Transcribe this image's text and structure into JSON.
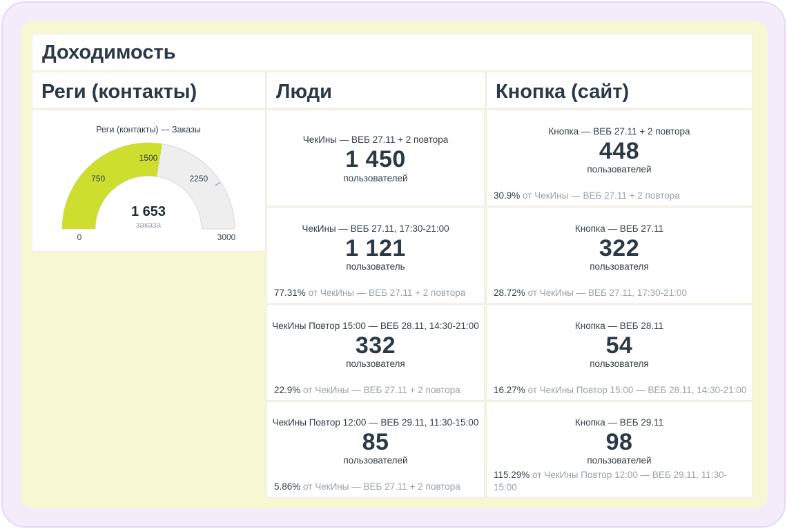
{
  "dashboard": {
    "title": "Доходимость"
  },
  "columns": {
    "regi": "Реги (контакты)",
    "people": "Люди",
    "button": "Кнопка (сайт)"
  },
  "gauge": {
    "title": "Реги (контакты) — Заказы",
    "value_label": "1 653",
    "unit": "заказа",
    "value": 1653,
    "target": 2450,
    "min": 0,
    "max": 3000,
    "tick_labels": [
      "0",
      "750",
      "1500",
      "2250",
      "3000"
    ],
    "fill_color": "#cdde2f",
    "track_color": "#eeeeee",
    "target_color": "#9fbad6"
  },
  "people_cards": [
    {
      "caption": "ЧекИны — ВЕБ 27.11 + 2 повтора",
      "value": "1 450",
      "unit": "пользователей",
      "pct": "",
      "ref": ""
    },
    {
      "caption": "ЧекИны — ВЕБ 27.11, 17:30-21:00",
      "value": "1 121",
      "unit": "пользователь",
      "pct": "77.31%",
      "ref": "от ЧекИны — ВЕБ 27.11 + 2 повтора"
    },
    {
      "caption": "ЧекИны Повтор 15:00 — ВЕБ 28.11, 14:30-21:00",
      "value": "332",
      "unit": "пользователя",
      "pct": "22.9%",
      "ref": "от ЧекИны — ВЕБ 27.11 + 2 повтора"
    },
    {
      "caption": "ЧекИны Повтор 12:00 — ВЕБ 29.11, 11:30-15:00",
      "value": "85",
      "unit": "пользователей",
      "pct": "5.86%",
      "ref": "от ЧекИны — ВЕБ 27.11 + 2 повтора"
    }
  ],
  "button_cards": [
    {
      "caption": "Кнопка — ВЕБ 27.11 + 2 повтора",
      "value": "448",
      "unit": "пользователей",
      "pct": "30.9%",
      "ref": "от ЧекИны — ВЕБ 27.11 + 2 повтора"
    },
    {
      "caption": "Кнопка — ВЕБ 27.11",
      "value": "322",
      "unit": "пользователя",
      "pct": "28.72%",
      "ref": "от ЧекИны — ВЕБ 27.11, 17:30-21:00"
    },
    {
      "caption": "Кнопка — ВЕБ 28.11",
      "value": "54",
      "unit": "пользователя",
      "pct": "16.27%",
      "ref": "от ЧекИны Повтор 15:00 — ВЕБ 28.11, 14:30-21:00"
    },
    {
      "caption": "Кнопка — ВЕБ 29.11",
      "value": "98",
      "unit": "пользователей",
      "pct": "115.29%",
      "ref": "от ЧекИны Повтор 12:00 — ВЕБ 29.11, 11:30-15:00"
    }
  ]
}
